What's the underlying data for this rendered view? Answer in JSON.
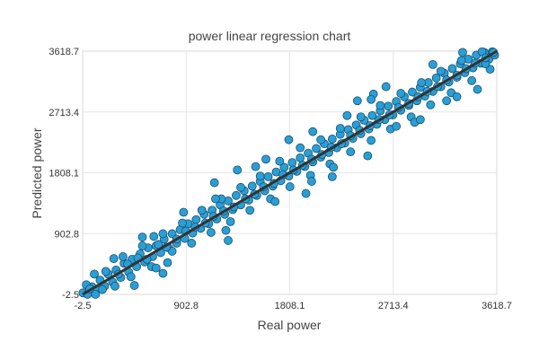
{
  "chart_data": {
    "type": "scatter",
    "title": "power linear regression chart",
    "xlabel": "Real power",
    "ylabel": "Predicted power",
    "xlim": [
      -2.5,
      3618.7
    ],
    "ylim": [
      -2.5,
      3618.7
    ],
    "x_ticks": [
      "-2.5",
      "902.8",
      "1808.1",
      "2713.4",
      "3618.7"
    ],
    "y_ticks": [
      "-2.5",
      "902.8",
      "1808.1",
      "2713.4",
      "3618.7"
    ],
    "grid": true,
    "colors": {
      "points": "#2a9fd6",
      "point_edge": "#1b4f6b",
      "line": "#333333"
    },
    "regression_line": {
      "x": [
        -2.5,
        3618.7
      ],
      "y": [
        -2.5,
        3618.7
      ]
    },
    "points": [
      [
        0,
        20
      ],
      [
        40,
        -2
      ],
      [
        80,
        110
      ],
      [
        120,
        60
      ],
      [
        150,
        210
      ],
      [
        190,
        120
      ],
      [
        220,
        300
      ],
      [
        260,
        180
      ],
      [
        290,
        360
      ],
      [
        330,
        250
      ],
      [
        360,
        460
      ],
      [
        400,
        330
      ],
      [
        430,
        520
      ],
      [
        470,
        410
      ],
      [
        500,
        600
      ],
      [
        540,
        480
      ],
      [
        570,
        690
      ],
      [
        610,
        560
      ],
      [
        640,
        720
      ],
      [
        680,
        620
      ],
      [
        710,
        820
      ],
      [
        750,
        690
      ],
      [
        780,
        900
      ],
      [
        820,
        760
      ],
      [
        850,
        960
      ],
      [
        890,
        830
      ],
      [
        920,
        1050
      ],
      [
        960,
        910
      ],
      [
        990,
        1110
      ],
      [
        1030,
        980
      ],
      [
        1060,
        1190
      ],
      [
        1100,
        1050
      ],
      [
        1130,
        1250
      ],
      [
        1170,
        1120
      ],
      [
        1200,
        1330
      ],
      [
        1240,
        1190
      ],
      [
        1270,
        1390
      ],
      [
        1310,
        1260
      ],
      [
        1340,
        1470
      ],
      [
        1380,
        1330
      ],
      [
        1410,
        1540
      ],
      [
        1450,
        1400
      ],
      [
        1480,
        1610
      ],
      [
        1520,
        1470
      ],
      [
        1550,
        1680
      ],
      [
        1590,
        1540
      ],
      [
        1620,
        1750
      ],
      [
        1660,
        1610
      ],
      [
        1690,
        1820
      ],
      [
        1730,
        1690
      ],
      [
        1760,
        1890
      ],
      [
        1800,
        1760
      ],
      [
        1830,
        1960
      ],
      [
        1870,
        1830
      ],
      [
        1900,
        2030
      ],
      [
        1940,
        1900
      ],
      [
        1970,
        2100
      ],
      [
        2010,
        1970
      ],
      [
        2040,
        2170
      ],
      [
        2080,
        2040
      ],
      [
        2110,
        2240
      ],
      [
        2150,
        2110
      ],
      [
        2180,
        2310
      ],
      [
        2220,
        2180
      ],
      [
        2250,
        2380
      ],
      [
        2290,
        2250
      ],
      [
        2320,
        2450
      ],
      [
        2360,
        2320
      ],
      [
        2390,
        2520
      ],
      [
        2430,
        2390
      ],
      [
        2460,
        2590
      ],
      [
        2500,
        2460
      ],
      [
        2530,
        2660
      ],
      [
        2570,
        2530
      ],
      [
        2600,
        2730
      ],
      [
        2640,
        2600
      ],
      [
        2670,
        2800
      ],
      [
        2710,
        2670
      ],
      [
        2740,
        2870
      ],
      [
        2780,
        2740
      ],
      [
        2810,
        2940
      ],
      [
        2850,
        2810
      ],
      [
        2880,
        3010
      ],
      [
        2920,
        2880
      ],
      [
        2950,
        3080
      ],
      [
        2990,
        2950
      ],
      [
        3020,
        3150
      ],
      [
        3060,
        3020
      ],
      [
        3090,
        3220
      ],
      [
        3130,
        3090
      ],
      [
        3160,
        3290
      ],
      [
        3200,
        3160
      ],
      [
        3230,
        3360
      ],
      [
        3270,
        3230
      ],
      [
        3300,
        3430
      ],
      [
        3340,
        3300
      ],
      [
        3370,
        3500
      ],
      [
        3410,
        3370
      ],
      [
        3440,
        3560
      ],
      [
        3480,
        3440
      ],
      [
        3510,
        3600
      ],
      [
        3550,
        3500
      ],
      [
        3580,
        3610
      ],
      [
        3600,
        3560
      ],
      [
        30,
        140
      ],
      [
        110,
        -2
      ],
      [
        200,
        340
      ],
      [
        280,
        120
      ],
      [
        350,
        560
      ],
      [
        420,
        260
      ],
      [
        520,
        720
      ],
      [
        600,
        410
      ],
      [
        700,
        900
      ],
      [
        780,
        640
      ],
      [
        870,
        1060
      ],
      [
        950,
        760
      ],
      [
        1040,
        1250
      ],
      [
        1120,
        920
      ],
      [
        1210,
        1420
      ],
      [
        1290,
        1080
      ],
      [
        1380,
        1590
      ],
      [
        1460,
        1250
      ],
      [
        1550,
        1760
      ],
      [
        1640,
        1420
      ],
      [
        1720,
        1980
      ],
      [
        1810,
        1600
      ],
      [
        1900,
        2180
      ],
      [
        1990,
        1770
      ],
      [
        2080,
        2300
      ],
      [
        2160,
        1940
      ],
      [
        2250,
        2470
      ],
      [
        2340,
        2120
      ],
      [
        2430,
        2640
      ],
      [
        2520,
        2290
      ],
      [
        2600,
        2810
      ],
      [
        2690,
        2460
      ],
      [
        2780,
        2990
      ],
      [
        2870,
        2640
      ],
      [
        2960,
        3150
      ],
      [
        3040,
        2820
      ],
      [
        3130,
        3320
      ],
      [
        3220,
        3000
      ],
      [
        3310,
        3480
      ],
      [
        3400,
        3180
      ],
      [
        3490,
        3610
      ],
      [
        3560,
        3350
      ],
      [
        270,
        530
      ],
      [
        450,
        130
      ],
      [
        620,
        860
      ],
      [
        740,
        470
      ],
      [
        1160,
        1420
      ],
      [
        1250,
        950
      ],
      [
        1510,
        1900
      ],
      [
        1680,
        1380
      ],
      [
        2010,
        2420
      ],
      [
        2190,
        1890
      ],
      [
        2540,
        2980
      ],
      [
        2740,
        2500
      ],
      [
        3060,
        3420
      ],
      [
        3270,
        2940
      ],
      [
        1150,
        1660
      ],
      [
        1270,
        800
      ],
      [
        2400,
        2880
      ],
      [
        2490,
        2060
      ],
      [
        3320,
        3600
      ],
      [
        3450,
        3050
      ],
      [
        640,
        390
      ],
      [
        880,
        1220
      ],
      [
        1600,
        2010
      ],
      [
        2000,
        1680
      ],
      [
        2310,
        2660
      ],
      [
        2900,
        2560
      ],
      [
        520,
        850
      ],
      [
        1800,
        2300
      ],
      [
        2520,
        2900
      ],
      [
        700,
        310
      ],
      [
        2180,
        1750
      ],
      [
        2950,
        2600
      ],
      [
        100,
        300
      ],
      [
        1350,
        1850
      ],
      [
        1950,
        1500
      ],
      [
        2650,
        3090
      ],
      [
        3180,
        2880
      ],
      [
        3520,
        3430
      ],
      [
        60,
        80
      ],
      [
        170,
        70
      ],
      [
        310,
        300
      ],
      [
        390,
        450
      ],
      [
        480,
        540
      ],
      [
        560,
        520
      ],
      [
        660,
        740
      ],
      [
        730,
        700
      ],
      [
        820,
        820
      ],
      [
        900,
        940
      ],
      [
        980,
        1000
      ],
      [
        1070,
        1060
      ],
      [
        1140,
        1160
      ],
      [
        1230,
        1240
      ],
      [
        1320,
        1300
      ],
      [
        1420,
        1420
      ],
      [
        1500,
        1490
      ],
      [
        1580,
        1600
      ],
      [
        1670,
        1650
      ],
      [
        1750,
        1780
      ],
      [
        1840,
        1850
      ],
      [
        1920,
        1920
      ],
      [
        2000,
        2010
      ],
      [
        2090,
        2080
      ],
      [
        2170,
        2190
      ],
      [
        2260,
        2240
      ],
      [
        2340,
        2360
      ],
      [
        2420,
        2440
      ],
      [
        2510,
        2510
      ],
      [
        2590,
        2600
      ],
      [
        2680,
        2670
      ],
      [
        2760,
        2780
      ],
      [
        2850,
        2840
      ],
      [
        2930,
        2940
      ],
      [
        3010,
        3020
      ],
      [
        3100,
        3090
      ],
      [
        3180,
        3190
      ],
      [
        3270,
        3260
      ],
      [
        3350,
        3360
      ],
      [
        3430,
        3440
      ],
      [
        3520,
        3520
      ],
      [
        3590,
        3600
      ]
    ]
  }
}
